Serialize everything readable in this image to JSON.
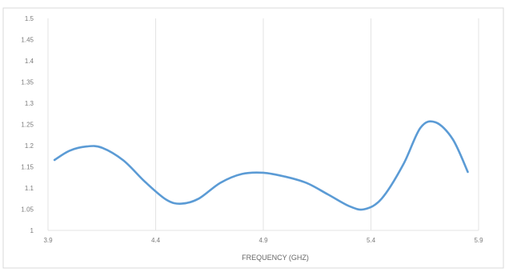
{
  "chart_data": {
    "type": "line",
    "title": "",
    "xlabel": "FREQUENCY (GHZ)",
    "ylabel": "",
    "xlim": [
      3.9,
      5.9
    ],
    "ylim": [
      1,
      1.5
    ],
    "x_ticks": [
      "3.9",
      "4.4",
      "4.9",
      "5.4",
      "5.9"
    ],
    "x_tick_values": [
      3.9,
      4.4,
      4.9,
      5.4,
      5.9
    ],
    "y_ticks": [
      "1",
      "1.05",
      "1.1",
      "1.15",
      "1.2",
      "1.25",
      "1.3",
      "1.35",
      "1.4",
      "1.45",
      "1.5"
    ],
    "y_tick_values": [
      1,
      1.05,
      1.1,
      1.15,
      1.2,
      1.25,
      1.3,
      1.35,
      1.4,
      1.45,
      1.5
    ],
    "grid": "vertical",
    "legend": "none",
    "series": [
      {
        "color": "#5b9bd5",
        "x": [
          3.93,
          4.0,
          4.08,
          4.15,
          4.25,
          4.35,
          4.45,
          4.52,
          4.6,
          4.7,
          4.8,
          4.9,
          5.0,
          5.1,
          5.2,
          5.3,
          5.37,
          5.45,
          5.55,
          5.63,
          5.7,
          5.78,
          5.85
        ],
        "y": [
          1.166,
          1.188,
          1.198,
          1.195,
          1.165,
          1.115,
          1.072,
          1.063,
          1.075,
          1.112,
          1.133,
          1.136,
          1.127,
          1.112,
          1.085,
          1.057,
          1.05,
          1.075,
          1.155,
          1.242,
          1.255,
          1.215,
          1.138
        ]
      }
    ]
  }
}
